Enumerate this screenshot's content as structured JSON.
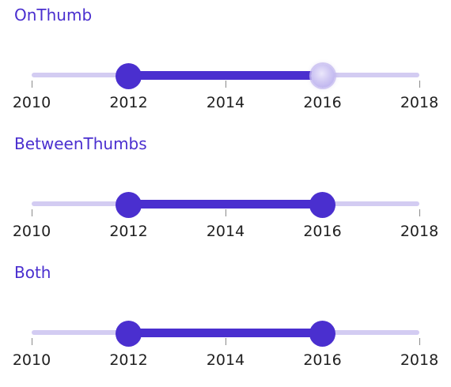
{
  "sliders": [
    {
      "title": "OnThumb",
      "start": 2012,
      "end": 2016,
      "min": 2010,
      "max": 2018,
      "ticks": [
        "2010",
        "2012",
        "2014",
        "2016",
        "2018"
      ],
      "focused_thumb": "end"
    },
    {
      "title": "BetweenThumbs",
      "start": 2012,
      "end": 2016,
      "min": 2010,
      "max": 2018,
      "ticks": [
        "2010",
        "2012",
        "2014",
        "2016",
        "2018"
      ],
      "focused_thumb": ""
    },
    {
      "title": "Both",
      "start": 2012,
      "end": 2016,
      "min": 2010,
      "max": 2018,
      "ticks": [
        "2010",
        "2012",
        "2014",
        "2016",
        "2018"
      ],
      "focused_thumb": ""
    }
  ],
  "colors": {
    "accent": "#4a2fcf",
    "inactive_track": "#d3ccf2"
  }
}
